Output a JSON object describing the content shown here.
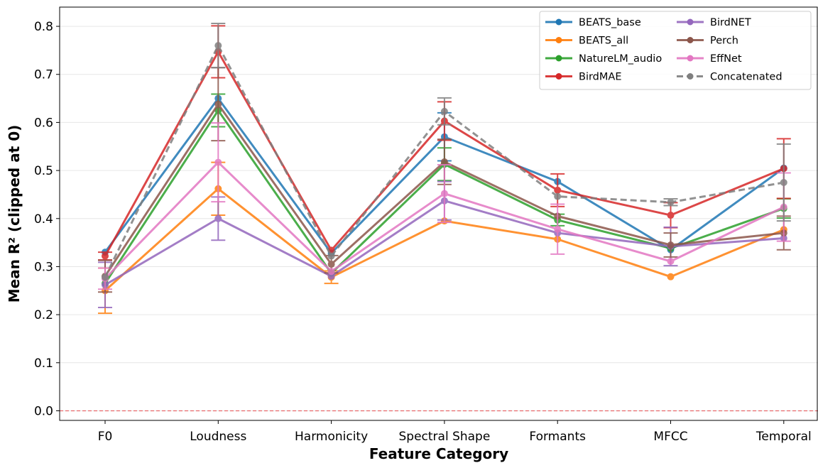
{
  "chart_data": {
    "type": "line",
    "xlabel": "Feature Category",
    "ylabel": "Mean R²  (clipped at 0)",
    "categories": [
      "F0",
      "Loudness",
      "Harmonicity",
      "Spectral Shape",
      "Formants",
      "MFCC",
      "Temporal"
    ],
    "ylim": [
      -0.02,
      0.84
    ],
    "yticks": [
      "0.0",
      "0.1",
      "0.2",
      "0.3",
      "0.4",
      "0.5",
      "0.6",
      "0.7",
      "0.8"
    ],
    "grid": "horizontal",
    "legend_position": "top-right",
    "reference_line": {
      "y": 0.0,
      "color": "#e8686b",
      "style": "dashed"
    },
    "series": [
      {
        "name": "BEATS_base",
        "color": "#1f77b4",
        "dashed": false,
        "values": [
          0.33,
          0.65,
          0.328,
          0.57,
          0.477,
          0.335,
          0.505
        ],
        "errors": [
          0.0,
          0.0,
          0.0,
          0.05,
          0.0,
          0.0,
          0.0
        ]
      },
      {
        "name": "BEATS_all",
        "color": "#ff7f0e",
        "dashed": false,
        "values": [
          0.25,
          0.462,
          0.278,
          0.395,
          0.357,
          0.279,
          0.377
        ],
        "errors": [
          0.047,
          0.055,
          0.013,
          0.0,
          0.0,
          0.0,
          0.0
        ]
      },
      {
        "name": "NatureLM_audio",
        "color": "#2ca02c",
        "dashed": false,
        "values": [
          0.265,
          0.625,
          0.286,
          0.513,
          0.397,
          0.338,
          0.421
        ],
        "errors": [
          0.0,
          0.034,
          0.0,
          0.034,
          0.012,
          0.0,
          0.02
        ]
      },
      {
        "name": "BirdMAE",
        "color": "#d62728",
        "dashed": false,
        "values": [
          0.322,
          0.747,
          0.334,
          0.603,
          0.459,
          0.407,
          0.504
        ],
        "errors": [
          0.008,
          0.054,
          0.0,
          0.04,
          0.034,
          0.026,
          0.062
        ]
      },
      {
        "name": "BirdNET",
        "color": "#9467bd",
        "dashed": false,
        "values": [
          0.262,
          0.4,
          0.28,
          0.437,
          0.37,
          0.342,
          0.359
        ],
        "errors": [
          0.047,
          0.045,
          0.0,
          0.04,
          0.0,
          0.04,
          0.0
        ]
      },
      {
        "name": "Perch",
        "color": "#8c564b",
        "dashed": false,
        "values": [
          0.28,
          0.638,
          0.305,
          0.518,
          0.405,
          0.345,
          0.37
        ],
        "errors": [
          0.033,
          0.076,
          0.018,
          0.047,
          0.0,
          0.025,
          0.035
        ]
      },
      {
        "name": "EffNet",
        "color": "#e377c2",
        "dashed": false,
        "values": [
          0.275,
          0.517,
          0.29,
          0.452,
          0.378,
          0.311,
          0.424
        ],
        "errors": [
          0.022,
          0.082,
          0.0,
          0.06,
          0.052,
          0.0,
          0.071
        ]
      },
      {
        "name": "Concatenated",
        "color": "#7f7f7f",
        "dashed": true,
        "values": [
          0.278,
          0.76,
          0.322,
          0.623,
          0.446,
          0.434,
          0.475
        ],
        "errors": [
          0.0,
          0.046,
          0.0,
          0.028,
          0.0,
          0.007,
          0.08
        ]
      }
    ]
  }
}
